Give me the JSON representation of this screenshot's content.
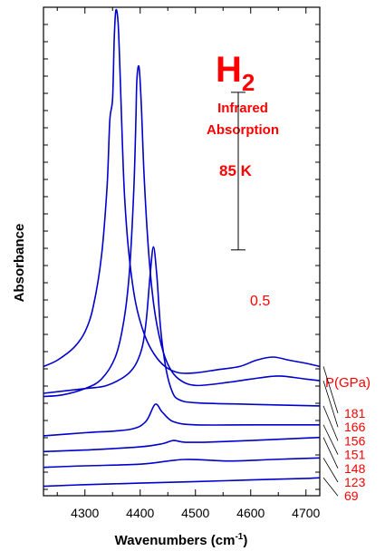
{
  "chart_data": {
    "type": "line",
    "title_main": "H",
    "title_sub": "2",
    "annotation_line1": "Infrared",
    "annotation_line2": "Absorption",
    "temperature": "85 K",
    "xlabel": "Wavenumbers (cm",
    "xlabel_sup": "-1",
    "xlabel_end": ")",
    "ylabel": "Absorbance",
    "xlim": [
      4225,
      4725
    ],
    "ylim": [
      0,
      1.55
    ],
    "x_ticks": [
      4300,
      4400,
      4500,
      4600,
      4700
    ],
    "x_tick_labels": [
      "4300",
      "4400",
      "4500",
      "4600",
      "4700"
    ],
    "scale_bar": {
      "label": "0.5",
      "value": 0.5,
      "y_from": 0.78,
      "y_to": 1.28
    },
    "pressure_header": "P(GPa)",
    "line_color": "#0000cc",
    "accent_color": "#ff0000",
    "series": [
      {
        "name": "69",
        "points": [
          [
            4225,
            0.03
          ],
          [
            4300,
            0.035
          ],
          [
            4400,
            0.04
          ],
          [
            4500,
            0.045
          ],
          [
            4600,
            0.05
          ],
          [
            4700,
            0.055
          ],
          [
            4725,
            0.057
          ]
        ]
      },
      {
        "name": "123",
        "points": [
          [
            4225,
            0.09
          ],
          [
            4300,
            0.095
          ],
          [
            4400,
            0.1
          ],
          [
            4480,
            0.115
          ],
          [
            4560,
            0.11
          ],
          [
            4640,
            0.115
          ],
          [
            4725,
            0.12
          ]
        ]
      },
      {
        "name": "148",
        "points": [
          [
            4225,
            0.14
          ],
          [
            4300,
            0.145
          ],
          [
            4400,
            0.155
          ],
          [
            4440,
            0.165
          ],
          [
            4460,
            0.175
          ],
          [
            4480,
            0.17
          ],
          [
            4520,
            0.17
          ],
          [
            4600,
            0.175
          ],
          [
            4725,
            0.185
          ]
        ]
      },
      {
        "name": "151",
        "points": [
          [
            4225,
            0.19
          ],
          [
            4300,
            0.2
          ],
          [
            4380,
            0.21
          ],
          [
            4410,
            0.235
          ],
          [
            4427,
            0.29
          ],
          [
            4440,
            0.265
          ],
          [
            4460,
            0.235
          ],
          [
            4500,
            0.225
          ],
          [
            4600,
            0.225
          ],
          [
            4725,
            0.225
          ]
        ]
      },
      {
        "name": "156",
        "points": [
          [
            4225,
            0.325
          ],
          [
            4300,
            0.34
          ],
          [
            4340,
            0.35
          ],
          [
            4380,
            0.39
          ],
          [
            4400,
            0.45
          ],
          [
            4410,
            0.54
          ],
          [
            4418,
            0.7
          ],
          [
            4424,
            0.79
          ],
          [
            4430,
            0.7
          ],
          [
            4437,
            0.53
          ],
          [
            4447,
            0.4
          ],
          [
            4458,
            0.33
          ],
          [
            4470,
            0.305
          ],
          [
            4500,
            0.295
          ],
          [
            4600,
            0.29
          ],
          [
            4725,
            0.285
          ]
        ]
      },
      {
        "name": "166",
        "points": [
          [
            4225,
            0.315
          ],
          [
            4260,
            0.32
          ],
          [
            4300,
            0.34
          ],
          [
            4330,
            0.37
          ],
          [
            4355,
            0.44
          ],
          [
            4370,
            0.55
          ],
          [
            4380,
            0.7
          ],
          [
            4388,
            0.95
          ],
          [
            4392,
            1.18
          ],
          [
            4394,
            1.32
          ],
          [
            4398,
            1.36
          ],
          [
            4402,
            1.24
          ],
          [
            4407,
            1.02
          ],
          [
            4415,
            0.78
          ],
          [
            4425,
            0.6
          ],
          [
            4438,
            0.48
          ],
          [
            4452,
            0.41
          ],
          [
            4470,
            0.37
          ],
          [
            4500,
            0.35
          ],
          [
            4560,
            0.36
          ],
          [
            4600,
            0.37
          ],
          [
            4650,
            0.38
          ],
          [
            4700,
            0.37
          ],
          [
            4725,
            0.365
          ]
        ]
      },
      {
        "name": "181",
        "points": [
          [
            4225,
            0.41
          ],
          [
            4250,
            0.43
          ],
          [
            4280,
            0.47
          ],
          [
            4300,
            0.52
          ],
          [
            4315,
            0.6
          ],
          [
            4330,
            0.76
          ],
          [
            4340,
            0.98
          ],
          [
            4345,
            1.19
          ],
          [
            4350,
            1.26
          ],
          [
            4353,
            1.45
          ],
          [
            4356,
            1.54
          ],
          [
            4360,
            1.5
          ],
          [
            4364,
            1.32
          ],
          [
            4368,
            1.11
          ],
          [
            4372,
            0.94
          ],
          [
            4380,
            0.76
          ],
          [
            4392,
            0.61
          ],
          [
            4408,
            0.51
          ],
          [
            4425,
            0.45
          ],
          [
            4445,
            0.41
          ],
          [
            4470,
            0.39
          ],
          [
            4500,
            0.39
          ],
          [
            4540,
            0.4
          ],
          [
            4580,
            0.41
          ],
          [
            4610,
            0.43
          ],
          [
            4640,
            0.44
          ],
          [
            4670,
            0.43
          ],
          [
            4700,
            0.42
          ],
          [
            4725,
            0.41
          ]
        ]
      }
    ]
  }
}
